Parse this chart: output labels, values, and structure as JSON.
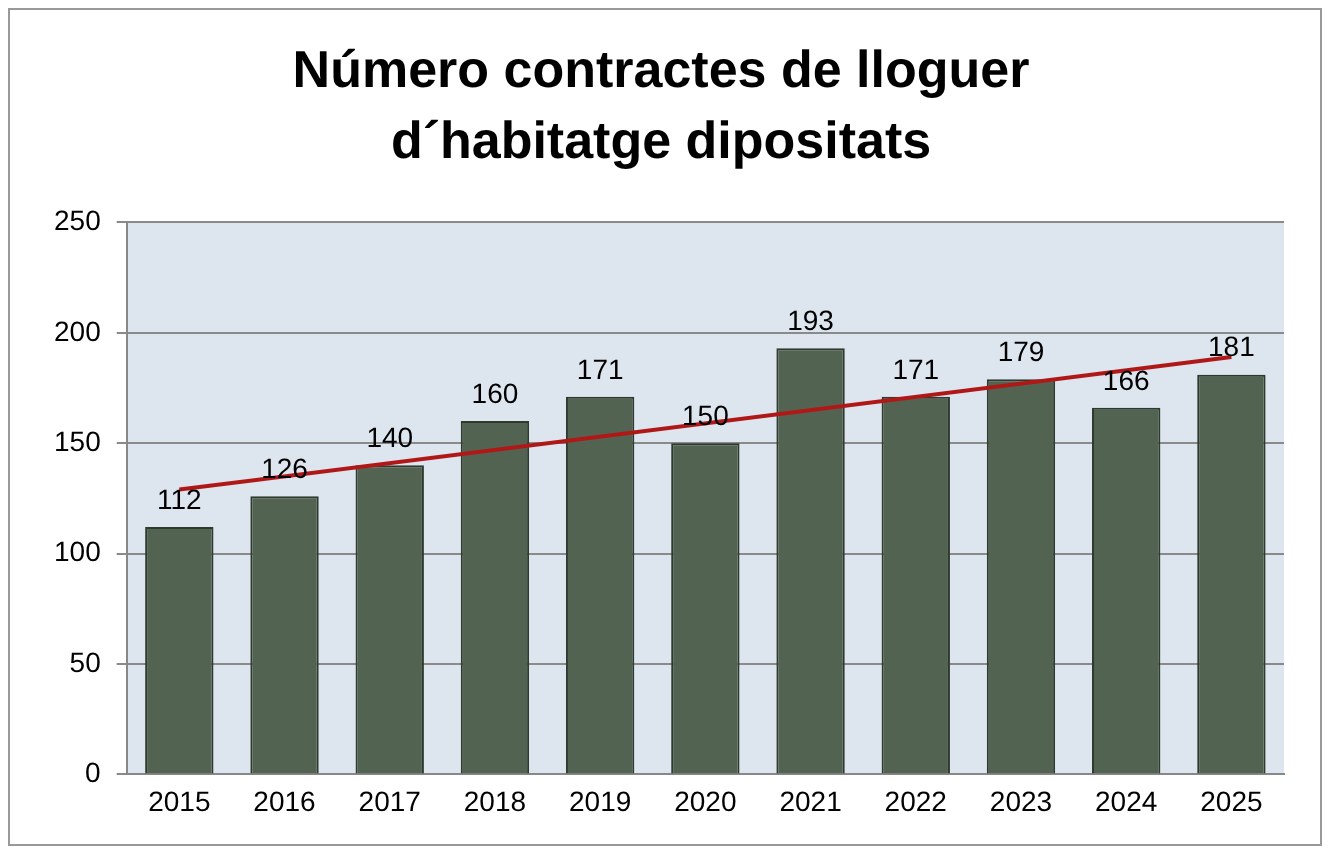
{
  "chart_data": {
    "type": "bar",
    "title": "Número contractes de lloguer\nd´habitatge dipositats",
    "categories": [
      "2015",
      "2016",
      "2017",
      "2018",
      "2019",
      "2020",
      "2021",
      "2022",
      "2023",
      "2024",
      "2025"
    ],
    "series": [
      {
        "color": "#536352",
        "values": [
          112,
          126,
          140,
          160,
          171,
          150,
          193,
          171,
          179,
          166,
          181
        ],
        "value_labels": [
          "112",
          "126",
          "140",
          "160",
          "171",
          "150",
          "193",
          "171",
          "179",
          "166",
          "181"
        ]
      },
      {
        "type": "line",
        "color": "#b01818",
        "values": [
          129,
          null,
          null,
          null,
          null,
          null,
          null,
          null,
          null,
          null,
          189
        ]
      }
    ],
    "ylim": [
      0,
      250
    ],
    "yticks": [
      0,
      50,
      100,
      150,
      200,
      250
    ],
    "grid": "y",
    "legend": false
  }
}
